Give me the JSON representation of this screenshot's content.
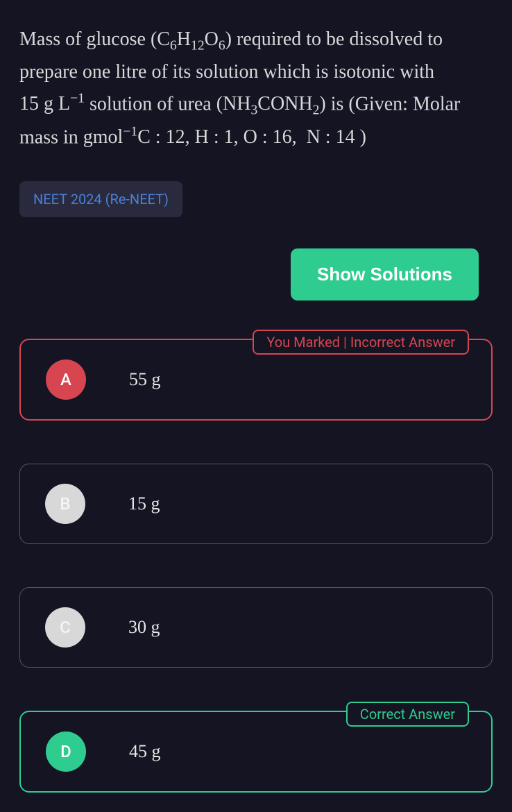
{
  "question": {
    "text_html": "Mass of glucose <span class='formula'>(C<sub>6</sub>H<sub>12</sub>O<sub>6</sub>)</span> required to be dissolved to prepare one litre of its solution which is isotonic with <span class='formula'>15&nbsp;g&nbsp;L<sup>&minus;1</sup></span> solution of urea <span class='formula'>(NH<sub>3</sub>CONH<sub>2</sub>)</span> is (Given: Molar mass in <span class='formula'>gmol<sup>&minus;1</sup>C : 12, H : 1, O : 16,&nbsp;&nbsp;N : 14 )</span>",
    "tag": "NEET 2024 (Re-NEET)"
  },
  "buttons": {
    "show_solutions": "Show Solutions"
  },
  "badges": {
    "incorrect": "You Marked | Incorrect Answer",
    "correct": "Correct Answer"
  },
  "options": [
    {
      "letter": "A",
      "text": "55 g",
      "state": "marked-incorrect",
      "letter_bg": "#d64550"
    },
    {
      "letter": "B",
      "text": "15 g",
      "state": "default",
      "letter_bg": "#d8d8d8"
    },
    {
      "letter": "C",
      "text": "30 g",
      "state": "default",
      "letter_bg": "#d8d8d8"
    },
    {
      "letter": "D",
      "text": "45 g",
      "state": "correct",
      "letter_bg": "#2ecc8f"
    }
  ],
  "colors": {
    "background": "#141423",
    "text": "#d8d8d8",
    "accent_green": "#2ecc8f",
    "accent_red": "#d64550",
    "tag_bg": "#2a2a3e",
    "tag_text": "#4a7fd8",
    "border_default": "#555566"
  }
}
